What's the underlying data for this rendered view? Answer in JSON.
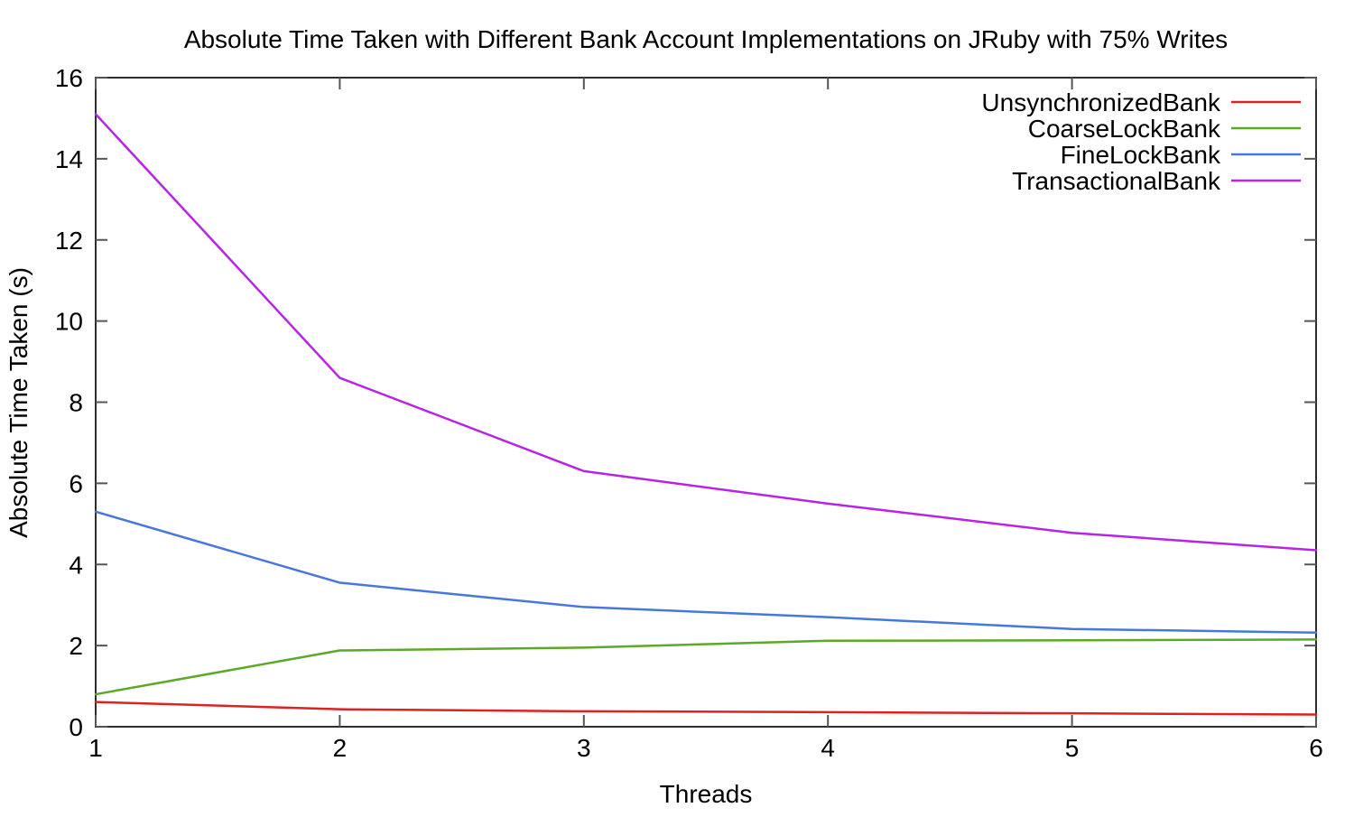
{
  "chart_data": {
    "type": "line",
    "title": "Absolute Time Taken with Different Bank Account Implementations on JRuby with 75% Writes",
    "xlabel": "Threads",
    "ylabel": "Absolute Time Taken (s)",
    "x": [
      1,
      2,
      3,
      4,
      5,
      6
    ],
    "xlim": [
      1,
      6
    ],
    "ylim": [
      0,
      16
    ],
    "xticks": [
      1,
      2,
      3,
      4,
      5,
      6
    ],
    "yticks": [
      0,
      2,
      4,
      6,
      8,
      10,
      12,
      14,
      16
    ],
    "grid": false,
    "legend_position": "top-right-inside",
    "series": [
      {
        "name": "UnsynchronizedBank",
        "color": "#dd2222",
        "values": [
          0.61,
          0.43,
          0.38,
          0.36,
          0.33,
          0.3
        ]
      },
      {
        "name": "CoarseLockBank",
        "color": "#5ca828",
        "values": [
          0.8,
          1.88,
          1.95,
          2.12,
          2.13,
          2.15
        ]
      },
      {
        "name": "FineLockBank",
        "color": "#4678dc",
        "values": [
          5.3,
          3.55,
          2.95,
          2.7,
          2.41,
          2.32
        ]
      },
      {
        "name": "TransactionalBank",
        "color": "#b923e6",
        "values": [
          15.1,
          8.6,
          6.3,
          5.5,
          4.78,
          4.35
        ]
      }
    ]
  },
  "colors": {
    "background": "#ffffff",
    "border": "#2e2e2e",
    "tick": "#555555",
    "text": "#000000"
  }
}
